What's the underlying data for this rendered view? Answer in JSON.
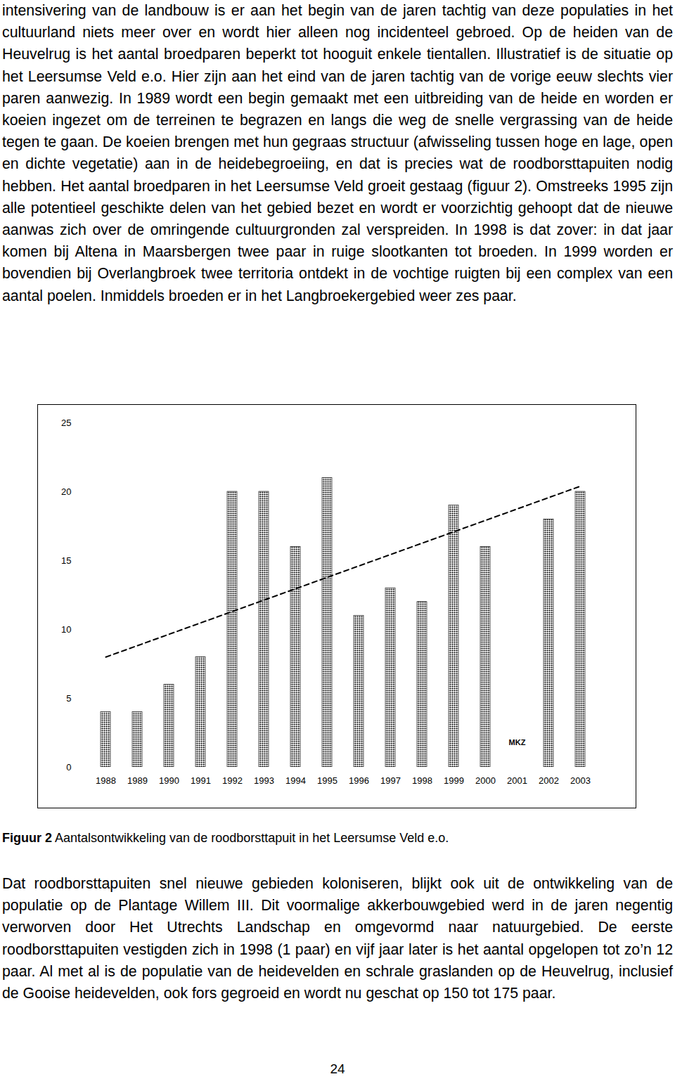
{
  "paragraphs_before": [
    "intensivering van de landbouw is er aan het begin van de jaren tachtig van deze populaties in het cultuurland niets meer over en wordt hier alleen nog incidenteel gebroed. Op de heiden van de Heuvelrug is het aantal broedparen beperkt tot hooguit enkele tientallen. Illustratief is de situatie op het Leersumse Veld e.o. Hier zijn aan het eind van de jaren tachtig van de vorige eeuw slechts vier paren aanwezig. In 1989 wordt een begin gemaakt met een uitbreiding van de heide en worden er koeien ingezet om de terreinen te begrazen en langs die weg de snelle vergrassing van de heide tegen te gaan. De koeien brengen met hun gegraas structuur (afwisseling tussen hoge en lage, open en dichte vegetatie) aan in de heidebegroeiing, en dat is precies wat de roodborsttapuiten nodig hebben. Het aantal broedparen in het Leersumse Veld groeit gestaag (figuur 2). Omstreeks 1995 zijn alle potentieel geschikte delen van het gebied bezet en wordt er voorzichtig gehoopt dat de nieuwe aanwas zich over de omringende cultuurgronden zal verspreiden. In 1998 is dat zover: in dat jaar komen bij Altena in Maarsbergen twee paar in ruige slootkanten tot broeden. In 1999 worden er bovendien bij Overlangbroek twee territoria ontdekt in de vochtige ruigten bij een complex van een aantal poelen. Inmiddels broeden er in het Langbroekergebied weer zes paar."
  ],
  "chart_data": {
    "type": "bar",
    "categories": [
      "1988",
      "1989",
      "1990",
      "1991",
      "1992",
      "1993",
      "1994",
      "1995",
      "1996",
      "1997",
      "1998",
      "1999",
      "2000",
      "2001",
      "2002",
      "2003"
    ],
    "values": [
      4,
      4,
      6,
      8,
      20,
      20,
      16,
      21,
      11,
      13,
      12,
      19,
      16,
      null,
      18,
      20
    ],
    "color": "#000000",
    "ylim": [
      0,
      25
    ],
    "yticks": [
      0,
      5,
      10,
      15,
      20,
      25
    ],
    "grid": false,
    "trendline": {
      "categories": [
        "1988",
        "2003"
      ],
      "values": [
        8,
        20.4
      ],
      "line_style": "dashed"
    },
    "annotations": [
      {
        "category": "2001",
        "text": "MKZ"
      }
    ]
  },
  "caption": {
    "label": "Figuur 2",
    "text": "Aantalsontwikkeling van de roodborsttapuit in het Leersumse Veld e.o."
  },
  "paragraphs_after": [
    "Dat roodborsttapuiten snel nieuwe gebieden koloniseren, blijkt ook uit de ontwikkeling van de populatie op de Plantage Willem III. Dit voormalige akkerbouwgebied werd in de jaren negentig verworven door Het Utrechts Landschap en omgevormd naar natuurgebied. De eerste roodborsttapuiten vestigden zich in 1998 (1 paar) en vijf jaar later is het aantal opgelopen tot zo’n 12 paar. Al met al is de populatie van de heidevelden en schrale graslanden op de Heuvelrug, inclusief de Gooise heidevelden, ook fors gegroeid en wordt nu geschat op 150 tot 175 paar."
  ],
  "page_number": "24"
}
